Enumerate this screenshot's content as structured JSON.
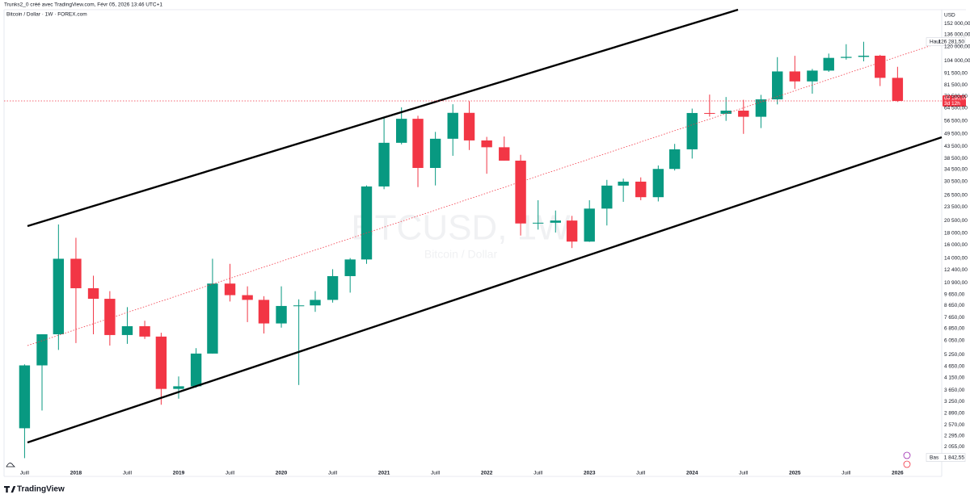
{
  "header": {
    "credit": "Trunks2_0 créé avec TradingView.com, Févr 05, 2026 13:46 UTC+1",
    "symbol": "Bitcoin / Dollar · 1W · FOREX.com",
    "currency": "USD",
    "brand": "TradingView"
  },
  "chart_data": {
    "type": "candlestick",
    "watermark": "BTCUSD, 1W",
    "watermark_sub": "Bitcoin / Dollar",
    "log_scale": true,
    "up_color": "#089981",
    "down_color": "#f23645",
    "xlim": [
      2017.3,
      2026.43
    ],
    "ylim": [
      1520,
      175000
    ],
    "xticks": [
      {
        "value": 2017.5,
        "label": "Juill"
      },
      2018,
      {
        "value": 2018.5,
        "label": "Juill"
      },
      2019,
      {
        "value": 2019.5,
        "label": "Juill"
      },
      2020,
      {
        "value": 2020.5,
        "label": "Juill"
      },
      2021,
      {
        "value": 2021.5,
        "label": "Juill"
      },
      2022,
      {
        "value": 2022.5,
        "label": "Juill"
      },
      2023,
      {
        "value": 2023.5,
        "label": "Juill"
      },
      2024,
      {
        "value": 2024.5,
        "label": "Juill"
      },
      2025,
      {
        "value": 2025.5,
        "label": "Juill"
      },
      2026
    ],
    "yticks": [
      {
        "value": 152000,
        "label": "152 000,00"
      },
      {
        "value": 136000,
        "label": "136 000,00"
      },
      {
        "value": 120000,
        "label": "120 000,00"
      },
      {
        "value": 104000,
        "label": "104 000,00"
      },
      {
        "value": 91500,
        "label": "91 500,00"
      },
      {
        "value": 81500,
        "label": "81 500,00"
      },
      {
        "value": 72500,
        "label": "72 500,00"
      },
      {
        "value": 64500,
        "label": "64 500,00"
      },
      {
        "value": 56500,
        "label": "56 500,00"
      },
      {
        "value": 49500,
        "label": "49 500,00"
      },
      {
        "value": 43500,
        "label": "43 500,00"
      },
      {
        "value": 38500,
        "label": "38 500,00"
      },
      {
        "value": 34500,
        "label": "34 500,00"
      },
      {
        "value": 30500,
        "label": "30 500,00"
      },
      {
        "value": 26500,
        "label": "26 500,00"
      },
      {
        "value": 23500,
        "label": "23 500,00"
      },
      {
        "value": 20500,
        "label": "20 500,00"
      },
      {
        "value": 18000,
        "label": "18 000,00"
      },
      {
        "value": 16000,
        "label": "16 000,00"
      },
      {
        "value": 14000,
        "label": "14 000,00"
      },
      {
        "value": 12400,
        "label": "12 400,00"
      },
      {
        "value": 10900,
        "label": "10 900,00"
      },
      {
        "value": 9650,
        "label": "9 650,00"
      },
      {
        "value": 8650,
        "label": "8 650,00"
      },
      {
        "value": 7650,
        "label": "7 650,00"
      },
      {
        "value": 6850,
        "label": "6 850,00"
      },
      {
        "value": 6050,
        "label": "6 050,00"
      },
      {
        "value": 5250,
        "label": "5 250,00"
      },
      {
        "value": 4650,
        "label": "4 650,00"
      },
      {
        "value": 4150,
        "label": "4 150,00"
      },
      {
        "value": 3650,
        "label": "3 650,00"
      },
      {
        "value": 3250,
        "label": "3 250,00"
      },
      {
        "value": 2890,
        "label": "2 890,00"
      },
      {
        "value": 2570,
        "label": "2 570,00"
      },
      {
        "value": 2295,
        "label": "2 295,00"
      },
      {
        "value": 2055,
        "label": "2 055,00"
      }
    ],
    "x": [
      2017.5,
      2017.67,
      2017.83,
      2018.0,
      2018.17,
      2018.33,
      2018.5,
      2018.67,
      2018.83,
      2019.0,
      2019.17,
      2019.33,
      2019.5,
      2019.67,
      2019.83,
      2020.0,
      2020.17,
      2020.33,
      2020.5,
      2020.67,
      2020.83,
      2021.0,
      2021.17,
      2021.33,
      2021.5,
      2021.67,
      2021.83,
      2022.0,
      2022.17,
      2022.33,
      2022.5,
      2022.67,
      2022.83,
      2023.0,
      2023.17,
      2023.33,
      2023.5,
      2023.67,
      2023.83,
      2024.0,
      2024.17,
      2024.33,
      2024.5,
      2024.67,
      2024.83,
      2025.0,
      2025.17,
      2025.33,
      2025.5,
      2025.67,
      2025.83,
      2026.0
    ],
    "open": [
      2480,
      4700,
      6450,
      13900,
      10300,
      9250,
      6400,
      7000,
      6300,
      3700,
      3800,
      5300,
      10800,
      9600,
      9150,
      7200,
      8600,
      8650,
      9150,
      11650,
      13800,
      29000,
      45200,
      57700,
      35000,
      47100,
      61300,
      46300,
      43200,
      37700,
      19900,
      20050,
      20500,
      16550,
      23150,
      29250,
      30450,
      26000,
      34650,
      42300,
      61200,
      60700,
      62700,
      58900,
      70300,
      93400,
      84400,
      94200,
      107200,
      108300,
      109600,
      87500
    ],
    "high": [
      4750,
      6450,
      19700,
      17200,
      11700,
      10000,
      8500,
      7400,
      6550,
      4200,
      5600,
      13900,
      13200,
      10500,
      9500,
      10500,
      9200,
      10000,
      12500,
      14000,
      29300,
      58300,
      64800,
      59500,
      50500,
      66900,
      69000,
      48000,
      48200,
      40000,
      25200,
      22700,
      21500,
      25200,
      31000,
      31400,
      31800,
      35900,
      44700,
      64000,
      73800,
      72000,
      70000,
      73600,
      108000,
      109500,
      95800,
      112000,
      123200,
      126300,
      110600,
      97900
    ],
    "low": [
      1830,
      2970,
      5500,
      5900,
      6450,
      5750,
      5850,
      6150,
      3150,
      3350,
      3750,
      5300,
      9000,
      7300,
      6500,
      6900,
      3850,
      8100,
      8900,
      9850,
      13200,
      28200,
      44500,
      28800,
      29300,
      39600,
      42000,
      33000,
      37700,
      17600,
      18700,
      18150,
      15500,
      16500,
      19500,
      24800,
      25200,
      24900,
      34100,
      38500,
      59000,
      56500,
      49500,
      52500,
      66800,
      78200,
      74500,
      93000,
      105300,
      103500,
      80500,
      68500
    ],
    "close": [
      4700,
      6450,
      13900,
      10300,
      9250,
      6400,
      7000,
      6300,
      3700,
      3800,
      5300,
      10800,
      9600,
      9150,
      7200,
      8600,
      8650,
      9150,
      11650,
      13800,
      29000,
      45200,
      57700,
      35000,
      47100,
      61300,
      46300,
      43200,
      37700,
      19900,
      20050,
      20500,
      16550,
      23150,
      29250,
      30450,
      26000,
      34650,
      42300,
      61200,
      60700,
      62700,
      58900,
      70300,
      93400,
      84400,
      94200,
      107200,
      108300,
      109600,
      87500,
      69180
    ],
    "markers": [
      {
        "name": "Haut",
        "value": 126281.5,
        "label": "126 281,50"
      },
      {
        "name": "Bas",
        "value": 1842.55,
        "label": "1 842,55"
      }
    ],
    "last_price": {
      "value": 69180,
      "label": "69 180,00",
      "countdown": "3d 12h"
    }
  }
}
